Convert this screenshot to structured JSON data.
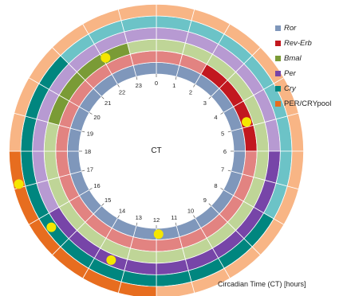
{
  "center_label": "CT",
  "hours": [
    "0",
    "1",
    "2",
    "3",
    "4",
    "5",
    "6",
    "7",
    "8",
    "9",
    "10",
    "11",
    "12",
    "13",
    "14",
    "15",
    "16",
    "17",
    "18",
    "19",
    "20",
    "21",
    "22",
    "23"
  ],
  "caption": "Circadian Time (CT) [hours]",
  "colors": {
    "background": "#ffffff",
    "inner_circle": "#ffffff",
    "marker": "#f5e600"
  },
  "rings": [
    {
      "name": "Ror",
      "italic": true,
      "light": "#7f97bb",
      "dark": "#7f97bb",
      "dark_hours": []
    },
    {
      "name": "Rev-Erb",
      "italic": true,
      "light": "#e28381",
      "dark": "#c2181f",
      "dark_hours": [
        2,
        6
      ]
    },
    {
      "name": "Bmal",
      "italic": true,
      "light": "#bfd597",
      "dark": "#7a9b36",
      "dark_hours": [
        19,
        23
      ]
    },
    {
      "name": "Per",
      "italic": true,
      "light": "#b79ad2",
      "dark": "#7745a8",
      "dark_hours": [
        6,
        16
      ]
    },
    {
      "name": "Cry",
      "italic": true,
      "light": "#6cc3c7",
      "dark": "#00867f",
      "dark_hours": [
        8,
        21
      ]
    },
    {
      "name": "PER/CRYpool",
      "italic": false,
      "light": "#f8b585",
      "dark": "#e76d1f",
      "dark_hours": [
        12,
        18
      ]
    }
  ],
  "markers": [
    {
      "ring": "Bmal",
      "hour": 22.1
    },
    {
      "ring": "Rev-Erb",
      "hour": 4.8
    },
    {
      "ring": "Ror",
      "hour": 11.9
    },
    {
      "ring": "Per",
      "hour": 13.5
    },
    {
      "ring": "Cry",
      "hour": 15.6
    },
    {
      "ring": "PER/CRYpool",
      "hour": 17.1
    }
  ]
}
